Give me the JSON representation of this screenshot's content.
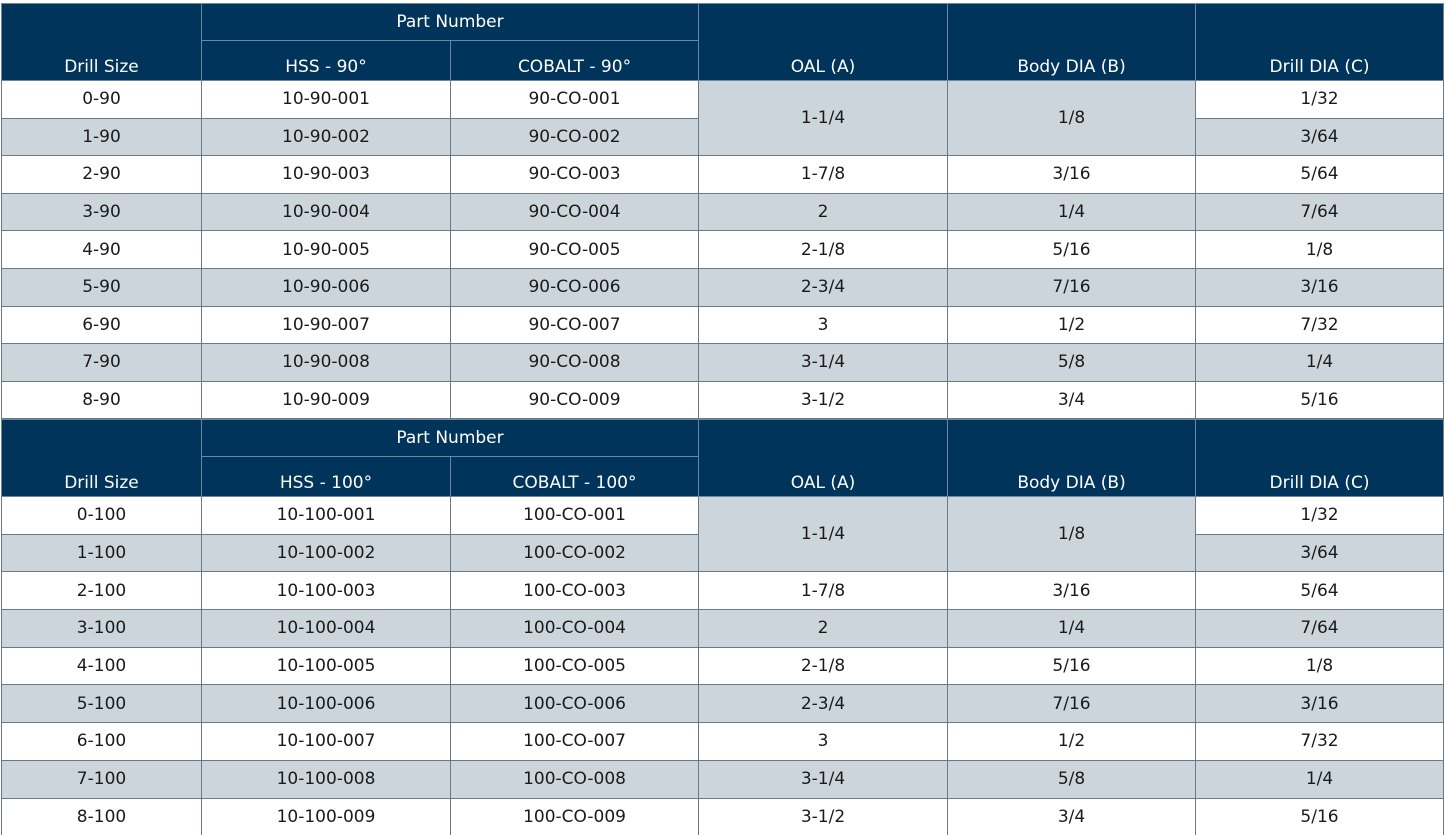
{
  "tables": [
    {
      "headers": {
        "part_number": "Part Number",
        "drill_size": "Drill Size",
        "hss": "HSS - 90°",
        "cobalt": "COBALT - 90°",
        "oal": "OAL (A)",
        "body": "Body DIA (B)",
        "drill_dia": "Drill DIA (C)"
      },
      "rows": [
        {
          "drill_size": "0-90",
          "hss": "10-90-001",
          "cobalt": "90-CO-001",
          "oal": "1-1/4",
          "body": "1/8",
          "drill_dia": "1/32"
        },
        {
          "drill_size": "1-90",
          "hss": "10-90-002",
          "cobalt": "90-CO-002",
          "drill_dia": "3/64"
        },
        {
          "drill_size": "2-90",
          "hss": "10-90-003",
          "cobalt": "90-CO-003",
          "oal": "1-7/8",
          "body": "3/16",
          "drill_dia": "5/64"
        },
        {
          "drill_size": "3-90",
          "hss": "10-90-004",
          "cobalt": "90-CO-004",
          "oal": "2",
          "body": "1/4",
          "drill_dia": "7/64"
        },
        {
          "drill_size": "4-90",
          "hss": "10-90-005",
          "cobalt": "90-CO-005",
          "oal": "2-1/8",
          "body": "5/16",
          "drill_dia": "1/8"
        },
        {
          "drill_size": "5-90",
          "hss": "10-90-006",
          "cobalt": "90-CO-006",
          "oal": "2-3/4",
          "body": "7/16",
          "drill_dia": "3/16"
        },
        {
          "drill_size": "6-90",
          "hss": "10-90-007",
          "cobalt": "90-CO-007",
          "oal": "3",
          "body": "1/2",
          "drill_dia": "7/32"
        },
        {
          "drill_size": "7-90",
          "hss": "10-90-008",
          "cobalt": "90-CO-008",
          "oal": "3-1/4",
          "body": "5/8",
          "drill_dia": "1/4"
        },
        {
          "drill_size": "8-90",
          "hss": "10-90-009",
          "cobalt": "90-CO-009",
          "oal": "3-1/2",
          "body": "3/4",
          "drill_dia": "5/16"
        }
      ]
    },
    {
      "headers": {
        "part_number": "Part Number",
        "drill_size": "Drill Size",
        "hss": "HSS - 100°",
        "cobalt": "COBALT - 100°",
        "oal": "OAL (A)",
        "body": "Body DIA (B)",
        "drill_dia": "Drill DIA (C)"
      },
      "rows": [
        {
          "drill_size": "0-100",
          "hss": "10-100-001",
          "cobalt": "100-CO-001",
          "oal": "1-1/4",
          "body": "1/8",
          "drill_dia": "1/32"
        },
        {
          "drill_size": "1-100",
          "hss": "10-100-002",
          "cobalt": "100-CO-002",
          "drill_dia": "3/64"
        },
        {
          "drill_size": "2-100",
          "hss": "10-100-003",
          "cobalt": "100-CO-003",
          "oal": "1-7/8",
          "body": "3/16",
          "drill_dia": "5/64"
        },
        {
          "drill_size": "3-100",
          "hss": "10-100-004",
          "cobalt": "100-CO-004",
          "oal": "2",
          "body": "1/4",
          "drill_dia": "7/64"
        },
        {
          "drill_size": "4-100",
          "hss": "10-100-005",
          "cobalt": "100-CO-005",
          "oal": "2-1/8",
          "body": "5/16",
          "drill_dia": "1/8"
        },
        {
          "drill_size": "5-100",
          "hss": "10-100-006",
          "cobalt": "100-CO-006",
          "oal": "2-3/4",
          "body": "7/16",
          "drill_dia": "3/16"
        },
        {
          "drill_size": "6-100",
          "hss": "10-100-007",
          "cobalt": "100-CO-007",
          "oal": "3",
          "body": "1/2",
          "drill_dia": "7/32"
        },
        {
          "drill_size": "7-100",
          "hss": "10-100-008",
          "cobalt": "100-CO-008",
          "oal": "3-1/4",
          "body": "5/8",
          "drill_dia": "1/4"
        },
        {
          "drill_size": "8-100",
          "hss": "10-100-009",
          "cobalt": "100-CO-009",
          "oal": "3-1/2",
          "body": "3/4",
          "drill_dia": "5/16"
        }
      ]
    }
  ]
}
